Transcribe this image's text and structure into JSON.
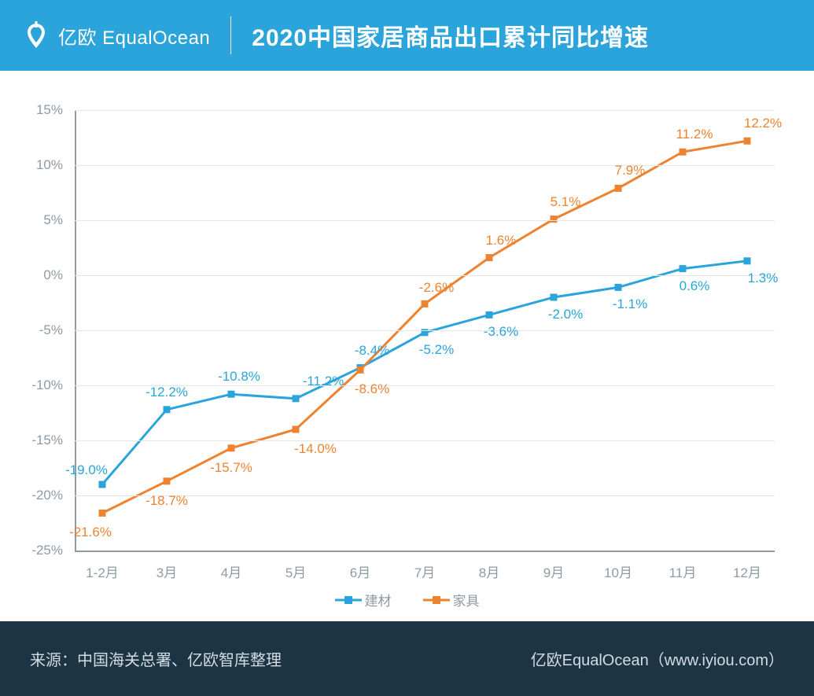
{
  "header": {
    "logo_text": "亿欧 EqualOcean",
    "title": "2020中国家居商品出口累计同比增速"
  },
  "chart": {
    "type": "line",
    "background_color": "#ffffff",
    "grid_color": "#e4e7ea",
    "axis_color": "#8f9aa3",
    "ytick_fontsize": 17,
    "xtick_fontsize": 17,
    "label_fontsize": 17,
    "ylim": [
      -25,
      15
    ],
    "ytick_step": 5,
    "yticks": [
      -25,
      -20,
      -15,
      -10,
      -5,
      0,
      5,
      10,
      15
    ],
    "ytick_labels": [
      "-25%",
      "-20%",
      "-15%",
      "-10%",
      "-5%",
      "0%",
      "5%",
      "10%",
      "15%"
    ],
    "categories": [
      "1-2月",
      "3月",
      "4月",
      "5月",
      "6月",
      "7月",
      "8月",
      "9月",
      "10月",
      "11月",
      "12月"
    ],
    "series": [
      {
        "name": "建材",
        "color": "#2aa4da",
        "marker": "square",
        "marker_size": 9,
        "line_width": 3,
        "values": [
          -19.0,
          -12.2,
          -10.8,
          -11.2,
          -8.4,
          -5.2,
          -3.6,
          -2.0,
          -1.1,
          0.6,
          1.3
        ],
        "labels": [
          "-19.0%",
          "-12.2%",
          "-10.8%",
          "-11.2%",
          "-8.4%",
          "-5.2%",
          "-3.6%",
          "-2.0%",
          "-1.1%",
          "0.6%",
          "1.3%"
        ],
        "label_dx": [
          -20,
          0,
          10,
          35,
          15,
          15,
          15,
          15,
          15,
          15,
          20
        ],
        "label_dy": [
          -18,
          -22,
          -22,
          -22,
          -22,
          22,
          22,
          22,
          22,
          22,
          22
        ]
      },
      {
        "name": "家具",
        "color": "#ed8331",
        "marker": "square",
        "marker_size": 9,
        "line_width": 3,
        "values": [
          -21.6,
          -18.7,
          -15.7,
          -14.0,
          -8.6,
          -2.6,
          1.6,
          5.1,
          7.9,
          11.2,
          12.2
        ],
        "labels": [
          "-21.6%",
          "-18.7%",
          "-15.7%",
          "-14.0%",
          "-8.6%",
          "-2.6%",
          "1.6%",
          "5.1%",
          "7.9%",
          "11.2%",
          "12.2%"
        ],
        "label_dx": [
          -15,
          0,
          0,
          25,
          15,
          15,
          15,
          15,
          15,
          15,
          20
        ],
        "label_dy": [
          25,
          25,
          25,
          25,
          25,
          -20,
          -22,
          -22,
          -22,
          -22,
          -22
        ]
      }
    ],
    "legend_position": "bottom"
  },
  "footer": {
    "source": "来源：中国海关总署、亿欧智库整理",
    "brand": "亿欧EqualOcean（www.iyiou.com）"
  },
  "colors": {
    "header_bg": "#2aa4da",
    "footer_bg": "#1d3445",
    "footer_text": "#d2dbe2"
  }
}
